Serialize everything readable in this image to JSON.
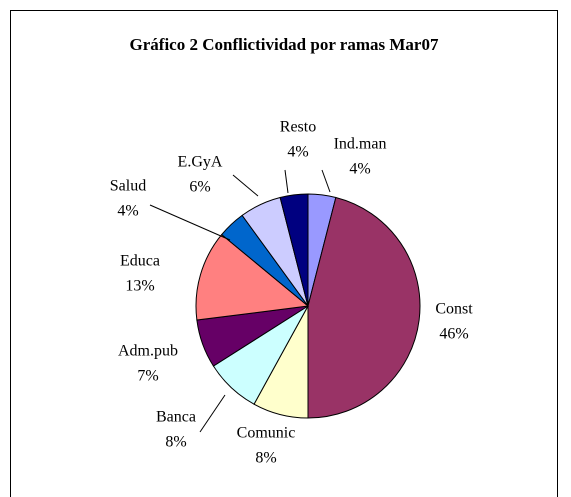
{
  "chart_data": {
    "type": "pie",
    "title": "Gráfico 2 Conflictividad por ramas Mar07",
    "categories": [
      "Ind.man",
      "Const",
      "Comunic",
      "Banca",
      "Adm.pub",
      "Educa",
      "Salud",
      "E.GyA",
      "Resto"
    ],
    "values": [
      4,
      46,
      8,
      8,
      7,
      13,
      4,
      6,
      4
    ],
    "value_labels": [
      "4%",
      "46%",
      "8%",
      "8%",
      "7%",
      "13%",
      "4%",
      "6%",
      "4%"
    ],
    "colors": [
      "#9999ff",
      "#993366",
      "#ffffcc",
      "#ccffff",
      "#660066",
      "#ff8080",
      "#0066cc",
      "#ccccff",
      "#000080"
    ]
  }
}
